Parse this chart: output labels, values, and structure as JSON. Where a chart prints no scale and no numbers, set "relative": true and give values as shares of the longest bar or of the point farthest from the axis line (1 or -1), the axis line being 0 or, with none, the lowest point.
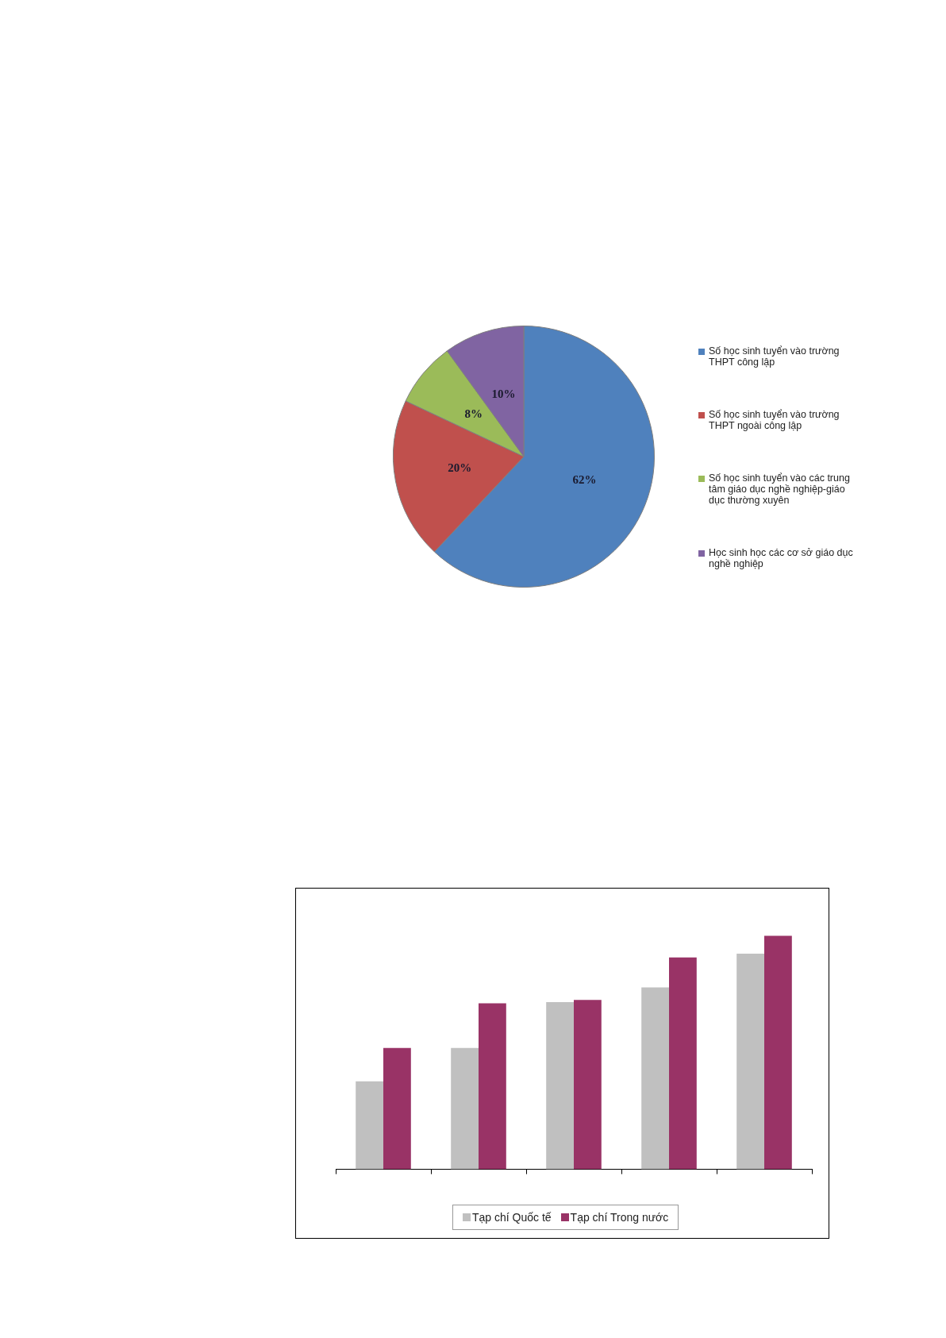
{
  "chart_data": [
    {
      "type": "pie",
      "categories": [
        "Số học sinh tuyển vào trường THPT  công lập",
        "Số học sinh tuyển vào trường THPT  ngoài công lập",
        "Số học sinh tuyển vào các trung tâm giáo dục nghề nghiệp-giáo dục thường xuyên",
        "Học sinh học các cơ sở giáo dục nghề nghiệp"
      ],
      "values": [
        62,
        20,
        8,
        10
      ],
      "value_labels": [
        "62%",
        "20%",
        "8%",
        "10%"
      ],
      "colors": [
        "#4f81bd",
        "#c0504d",
        "#9bbb59",
        "#8064a2"
      ],
      "legend": "right"
    },
    {
      "type": "bar",
      "relative": true,
      "categories": [
        null,
        null,
        null,
        null,
        null
      ],
      "series": [
        {
          "name": "Tạp chí Quốc tế",
          "color": "#c0c0c0",
          "values": [
            0.377,
            0.52,
            0.716,
            0.779,
            0.923
          ]
        },
        {
          "name": "Tạp chí Trong nước",
          "color": "#993366",
          "values": [
            0.52,
            0.711,
            0.725,
            0.907,
            1
          ]
        }
      ],
      "legend": "bottom"
    }
  ]
}
